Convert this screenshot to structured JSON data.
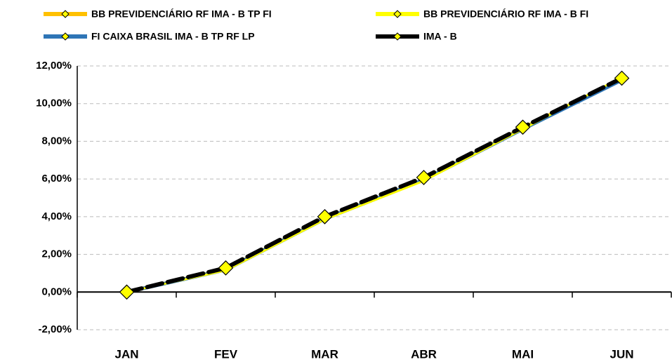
{
  "chart_data": {
    "type": "line",
    "categories": [
      "JAN",
      "FEV",
      "MAR",
      "ABR",
      "MAI",
      "JUN"
    ],
    "series": [
      {
        "name": "BB PREVIDENCIÁRIO RF IMA - B TP FI",
        "color": "#FFC000",
        "values": [
          0,
          1.2,
          3.9,
          5.95,
          8.7,
          11.3
        ]
      },
      {
        "name": "BB PREVIDENCIÁRIO RF IMA - B FI",
        "color": "#FFFF00",
        "values": [
          0,
          1.15,
          3.85,
          5.9,
          8.65,
          11.4
        ]
      },
      {
        "name": "FI CAIXA BRASIL IMA - B TP RF LP",
        "color": "#2E75B6",
        "values": [
          0,
          1.18,
          3.88,
          5.95,
          8.65,
          11.25
        ]
      },
      {
        "name": "IMA - B",
        "color": "#000000",
        "style": "dashed",
        "values": [
          0,
          1.28,
          4.0,
          6.08,
          8.75,
          11.35
        ]
      }
    ],
    "ylim": [
      -2,
      12
    ],
    "yticks": [
      {
        "value": -2,
        "label": "-2,00%"
      },
      {
        "value": 0,
        "label": "0,00%"
      },
      {
        "value": 2,
        "label": "2,00%"
      },
      {
        "value": 4,
        "label": "4,00%"
      },
      {
        "value": 6,
        "label": "6,00%"
      },
      {
        "value": 8,
        "label": "8,00%"
      },
      {
        "value": 10,
        "label": "10,00%"
      },
      {
        "value": 12,
        "label": "12,00%"
      }
    ],
    "grid": true
  }
}
